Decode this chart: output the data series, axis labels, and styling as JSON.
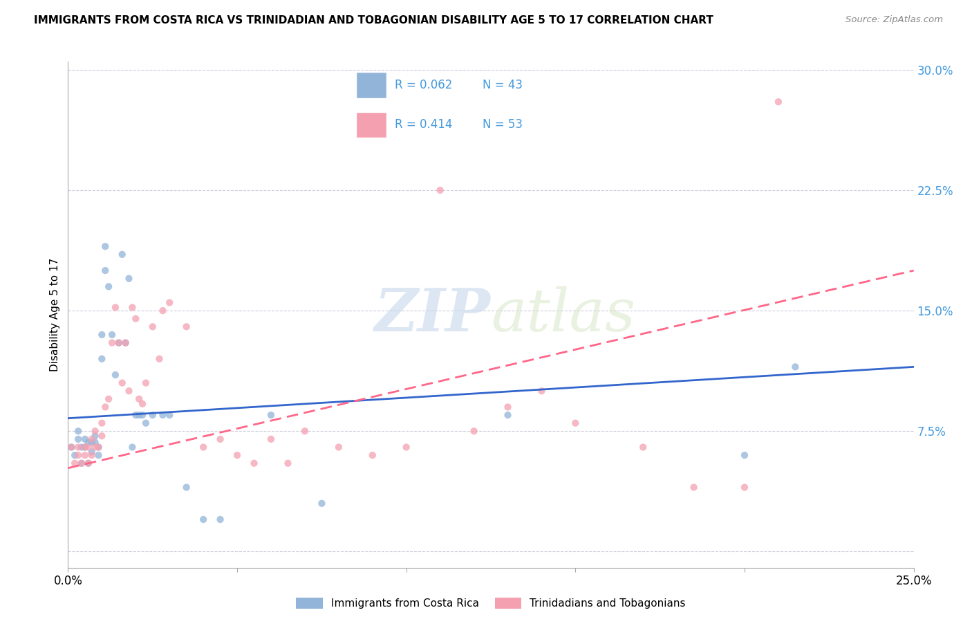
{
  "title": "IMMIGRANTS FROM COSTA RICA VS TRINIDADIAN AND TOBAGONIAN DISABILITY AGE 5 TO 17 CORRELATION CHART",
  "source": "Source: ZipAtlas.com",
  "ylabel": "Disability Age 5 to 17",
  "xlim": [
    0.0,
    0.25
  ],
  "ylim": [
    -0.01,
    0.305
  ],
  "xticks": [
    0.0,
    0.05,
    0.1,
    0.15,
    0.2,
    0.25
  ],
  "yticks": [
    0.0,
    0.075,
    0.15,
    0.225,
    0.3
  ],
  "ytick_labels": [
    "",
    "7.5%",
    "15.0%",
    "22.5%",
    "30.0%"
  ],
  "xtick_labels": [
    "0.0%",
    "",
    "",
    "",
    "",
    "25.0%"
  ],
  "R_blue": 0.062,
  "N_blue": 43,
  "R_pink": 0.414,
  "N_pink": 53,
  "blue_color": "#92B4D9",
  "pink_color": "#F4A0B0",
  "trend_blue_color": "#3366CC",
  "trend_pink_color": "#FF6688",
  "axis_color": "#4499DD",
  "watermark_color": "#D8E8F0",
  "blue_trend_start_y": 0.083,
  "blue_trend_end_y": 0.115,
  "pink_trend_start_y": 0.052,
  "pink_trend_end_y": 0.175,
  "blue_scatter_x": [
    0.001,
    0.002,
    0.003,
    0.003,
    0.004,
    0.004,
    0.005,
    0.005,
    0.006,
    0.006,
    0.007,
    0.007,
    0.008,
    0.008,
    0.009,
    0.009,
    0.01,
    0.01,
    0.011,
    0.011,
    0.012,
    0.013,
    0.014,
    0.015,
    0.016,
    0.017,
    0.018,
    0.019,
    0.02,
    0.021,
    0.022,
    0.023,
    0.025,
    0.028,
    0.03,
    0.035,
    0.04,
    0.045,
    0.06,
    0.075,
    0.13,
    0.2,
    0.215
  ],
  "blue_scatter_y": [
    0.065,
    0.06,
    0.075,
    0.07,
    0.055,
    0.065,
    0.065,
    0.07,
    0.055,
    0.068,
    0.062,
    0.068,
    0.068,
    0.072,
    0.06,
    0.065,
    0.135,
    0.12,
    0.175,
    0.19,
    0.165,
    0.135,
    0.11,
    0.13,
    0.185,
    0.13,
    0.17,
    0.065,
    0.085,
    0.085,
    0.085,
    0.08,
    0.085,
    0.085,
    0.085,
    0.04,
    0.02,
    0.02,
    0.085,
    0.03,
    0.085,
    0.06,
    0.115
  ],
  "pink_scatter_x": [
    0.001,
    0.002,
    0.003,
    0.003,
    0.004,
    0.005,
    0.005,
    0.006,
    0.006,
    0.007,
    0.007,
    0.008,
    0.008,
    0.009,
    0.01,
    0.01,
    0.011,
    0.012,
    0.013,
    0.014,
    0.015,
    0.016,
    0.017,
    0.018,
    0.019,
    0.02,
    0.021,
    0.022,
    0.023,
    0.025,
    0.027,
    0.028,
    0.03,
    0.035,
    0.04,
    0.045,
    0.05,
    0.055,
    0.06,
    0.065,
    0.07,
    0.08,
    0.09,
    0.1,
    0.11,
    0.12,
    0.13,
    0.14,
    0.15,
    0.17,
    0.185,
    0.2,
    0.21
  ],
  "pink_scatter_y": [
    0.065,
    0.055,
    0.06,
    0.065,
    0.055,
    0.06,
    0.065,
    0.055,
    0.065,
    0.06,
    0.07,
    0.065,
    0.075,
    0.065,
    0.072,
    0.08,
    0.09,
    0.095,
    0.13,
    0.152,
    0.13,
    0.105,
    0.13,
    0.1,
    0.152,
    0.145,
    0.095,
    0.092,
    0.105,
    0.14,
    0.12,
    0.15,
    0.155,
    0.14,
    0.065,
    0.07,
    0.06,
    0.055,
    0.07,
    0.055,
    0.075,
    0.065,
    0.06,
    0.065,
    0.225,
    0.075,
    0.09,
    0.1,
    0.08,
    0.065,
    0.04,
    0.04,
    0.28
  ]
}
